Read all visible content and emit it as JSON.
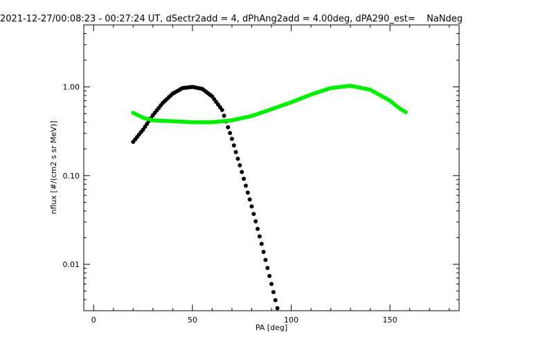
{
  "chart_data": {
    "type": "scatter",
    "title": "2021-12-27/00:08:23 - 00:27:24 UT, dSectr2add = 4, dPhAng2add = 4.00deg, dPA290_est=    NaNdeg",
    "xlabel": "PA [deg]",
    "ylabel": "nflux [#/(cm2 s sr MeV)]",
    "xlim": [
      -5,
      185
    ],
    "ylim": [
      0.003,
      5
    ],
    "yscale": "log",
    "grid": false,
    "x_ticks": [
      {
        "value": 0,
        "label": "0"
      },
      {
        "value": 50,
        "label": "50"
      },
      {
        "value": 100,
        "label": "100"
      },
      {
        "value": 150,
        "label": "150"
      }
    ],
    "x_minor_step": 10,
    "y_ticks": [
      {
        "value": 0.01,
        "label": "0.01"
      },
      {
        "value": 0.1,
        "label": "0.10"
      },
      {
        "value": 1,
        "label": "1.00"
      }
    ],
    "series": [
      {
        "color": "#000000",
        "x": [
          20,
          25,
          30,
          35,
          40,
          45,
          50,
          55,
          60,
          65,
          70,
          75,
          80,
          85,
          90,
          93
        ],
        "y": [
          0.24,
          0.33,
          0.48,
          0.66,
          0.84,
          0.97,
          1.0,
          0.95,
          0.78,
          0.55,
          0.26,
          0.11,
          0.045,
          0.017,
          0.006,
          0.0032
        ]
      },
      {
        "color": "#00ee00",
        "x": [
          20,
          25,
          30,
          40,
          50,
          60,
          70,
          80,
          90,
          100,
          110,
          120,
          130,
          140,
          150,
          155,
          158
        ],
        "y": [
          0.51,
          0.45,
          0.42,
          0.41,
          0.4,
          0.4,
          0.42,
          0.47,
          0.56,
          0.67,
          0.82,
          0.97,
          1.03,
          0.93,
          0.7,
          0.57,
          0.52
        ]
      }
    ]
  }
}
